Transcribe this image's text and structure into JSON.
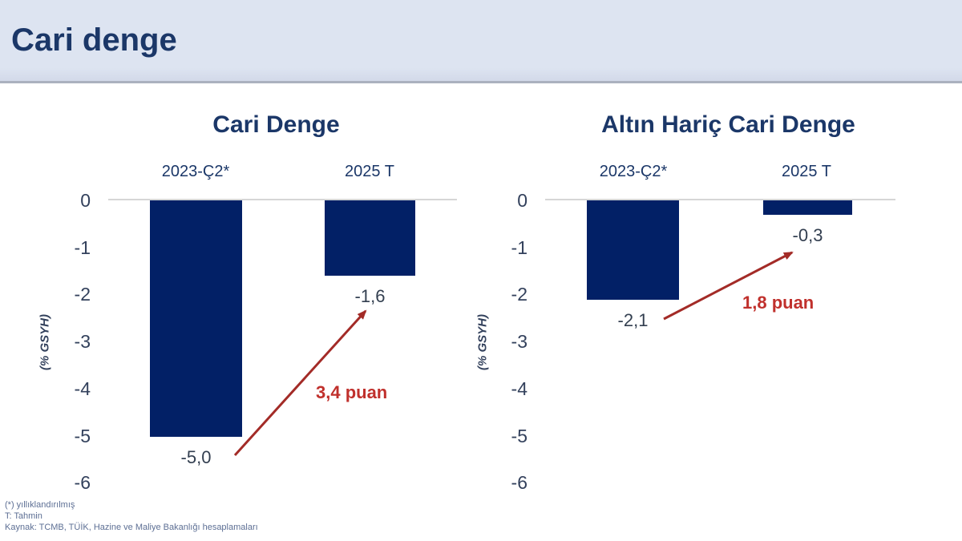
{
  "page": {
    "title": "Cari denge"
  },
  "chart_data": [
    {
      "type": "bar",
      "title": "Cari Denge",
      "categories": [
        "2023-Ç2*",
        "2025 T"
      ],
      "values": [
        -5.0,
        -1.6
      ],
      "value_labels": [
        "-5,0",
        "-1,6"
      ],
      "annotation": "3,4 puan",
      "ylabel": "(% GSYH)",
      "yticks": [
        "0",
        "-1",
        "-2",
        "-3",
        "-4",
        "-5",
        "-6"
      ],
      "ylim": [
        -6,
        0
      ],
      "grid": false,
      "legend": "none"
    },
    {
      "type": "bar",
      "title": "Altın Hariç Cari Denge",
      "categories": [
        "2023-Ç2*",
        "2025 T"
      ],
      "values": [
        -2.1,
        -0.3
      ],
      "value_labels": [
        "-2,1",
        "-0,3"
      ],
      "annotation": "1,8 puan",
      "ylabel": "(% GSYH)",
      "yticks": [
        "0",
        "-1",
        "-2",
        "-3",
        "-4",
        "-5",
        "-6"
      ],
      "ylim": [
        -6,
        0
      ],
      "grid": false,
      "legend": "none"
    }
  ],
  "footnotes": [
    "(*) yıllıklandırılmış",
    "T: Tahmin",
    "Kaynak: TCMB, TÜİK, Hazine ve Maliye Bakanlığı hesaplamaları"
  ],
  "colors": {
    "bar": "#022066",
    "navy": "#1b3768",
    "tick": "#33415c",
    "value": "#333f50",
    "arrow": "#a32b27",
    "annot": "#c0302c",
    "axis": "#d6d6d6",
    "fnote": "#5d6f94",
    "hbg": "#dde4f1",
    "hborder": "#abb1bf"
  }
}
